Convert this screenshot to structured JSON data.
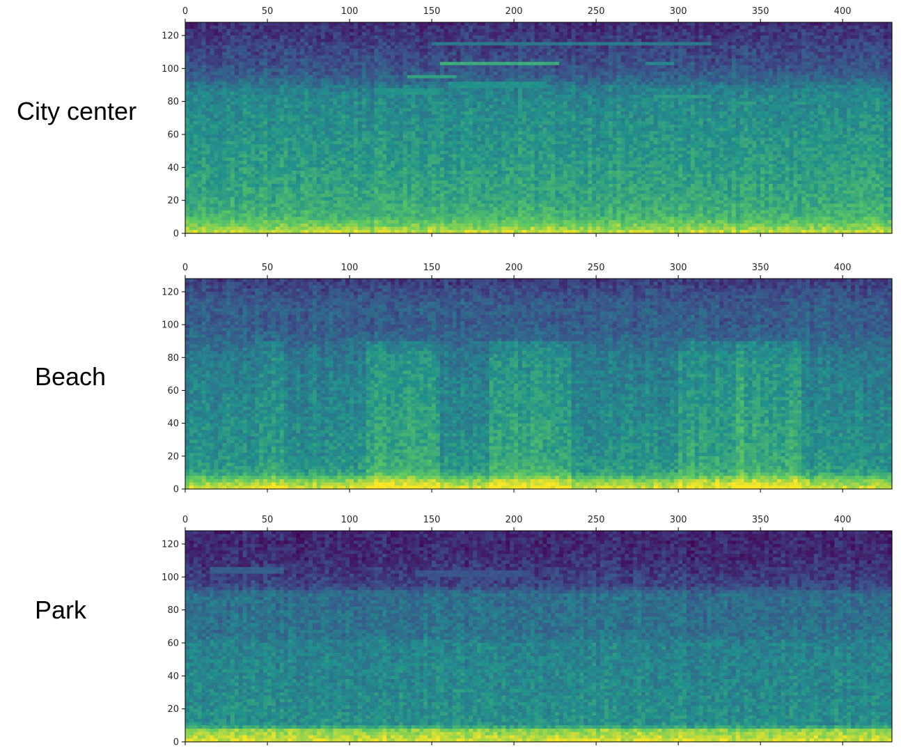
{
  "row_labels": [
    "City center",
    "Beach",
    "Park"
  ],
  "chart_data": [
    {
      "type": "heatmap",
      "row_label": "City center",
      "xlim": [
        0,
        430
      ],
      "ylim": [
        0,
        128
      ],
      "x_ticks": [
        0,
        50,
        100,
        150,
        200,
        250,
        300,
        350,
        400
      ],
      "y_ticks": [
        0,
        20,
        40,
        60,
        80,
        100,
        120
      ],
      "x_axis_position": "top",
      "colormap": [
        "#440154",
        "#3b528b",
        "#21918c",
        "#5ec962",
        "#fde725"
      ],
      "intensity_profile": [
        {
          "y": 0,
          "level": 0.93
        },
        {
          "y": 5,
          "level": 0.78
        },
        {
          "y": 10,
          "level": 0.66
        },
        {
          "y": 20,
          "level": 0.6
        },
        {
          "y": 40,
          "level": 0.55
        },
        {
          "y": 60,
          "level": 0.51
        },
        {
          "y": 80,
          "level": 0.47
        },
        {
          "y": 88,
          "level": 0.43
        },
        {
          "y": 92,
          "level": 0.34
        },
        {
          "y": 100,
          "level": 0.26
        },
        {
          "y": 110,
          "level": 0.22
        },
        {
          "y": 120,
          "level": 0.17
        },
        {
          "y": 128,
          "level": 0.13
        }
      ],
      "streaks": [
        {
          "x0": 135,
          "x1": 165,
          "y": 95,
          "level": 0.55
        },
        {
          "x0": 155,
          "x1": 228,
          "y": 103,
          "level": 0.62
        },
        {
          "x0": 150,
          "x1": 320,
          "y": 115,
          "level": 0.4
        },
        {
          "x0": 115,
          "x1": 155,
          "y": 86,
          "level": 0.52
        },
        {
          "x0": 160,
          "x1": 220,
          "y": 90,
          "level": 0.5
        },
        {
          "x0": 285,
          "x1": 320,
          "y": 83,
          "level": 0.55
        },
        {
          "x0": 330,
          "x1": 345,
          "y": 79,
          "level": 0.55
        },
        {
          "x0": 280,
          "x1": 298,
          "y": 103,
          "level": 0.45
        },
        {
          "x0": 55,
          "x1": 70,
          "y": 70,
          "level": 0.5
        }
      ],
      "vertical_bands": []
    },
    {
      "type": "heatmap",
      "row_label": "Beach",
      "xlim": [
        0,
        430
      ],
      "ylim": [
        0,
        128
      ],
      "x_ticks": [
        0,
        50,
        100,
        150,
        200,
        250,
        300,
        350,
        400
      ],
      "y_ticks": [
        0,
        20,
        40,
        60,
        80,
        100,
        120
      ],
      "x_axis_position": "top",
      "colormap": [
        "#440154",
        "#3b528b",
        "#21918c",
        "#5ec962",
        "#fde725"
      ],
      "intensity_profile": [
        {
          "y": 0,
          "level": 0.95
        },
        {
          "y": 5,
          "level": 0.8
        },
        {
          "y": 10,
          "level": 0.56
        },
        {
          "y": 20,
          "level": 0.5
        },
        {
          "y": 40,
          "level": 0.47
        },
        {
          "y": 60,
          "level": 0.44
        },
        {
          "y": 80,
          "level": 0.41
        },
        {
          "y": 90,
          "level": 0.34
        },
        {
          "y": 100,
          "level": 0.29
        },
        {
          "y": 110,
          "level": 0.3
        },
        {
          "y": 120,
          "level": 0.24
        },
        {
          "y": 128,
          "level": 0.17
        }
      ],
      "streaks": [],
      "vertical_bands": [
        {
          "x0": 110,
          "x1": 155,
          "level": 0.1
        },
        {
          "x0": 185,
          "x1": 235,
          "level": 0.1
        },
        {
          "x0": 300,
          "x1": 340,
          "level": 0.08
        },
        {
          "x0": 335,
          "x1": 375,
          "level": 0.1
        },
        {
          "x0": 45,
          "x1": 60,
          "level": 0.05
        }
      ]
    },
    {
      "type": "heatmap",
      "row_label": "Park",
      "xlim": [
        0,
        430
      ],
      "ylim": [
        0,
        128
      ],
      "x_ticks": [
        0,
        50,
        100,
        150,
        200,
        250,
        300,
        350,
        400
      ],
      "y_ticks": [
        0,
        20,
        40,
        60,
        80,
        100,
        120
      ],
      "x_axis_position": "top",
      "colormap": [
        "#440154",
        "#3b528b",
        "#21918c",
        "#5ec962",
        "#fde725"
      ],
      "intensity_profile": [
        {
          "y": 0,
          "level": 0.95
        },
        {
          "y": 7,
          "level": 0.82
        },
        {
          "y": 10,
          "level": 0.5
        },
        {
          "y": 30,
          "level": 0.47
        },
        {
          "y": 60,
          "level": 0.44
        },
        {
          "y": 65,
          "level": 0.38
        },
        {
          "y": 90,
          "level": 0.36
        },
        {
          "y": 94,
          "level": 0.22
        },
        {
          "y": 110,
          "level": 0.14
        },
        {
          "y": 128,
          "level": 0.11
        }
      ],
      "streaks": [
        {
          "x0": 15,
          "x1": 60,
          "y": 104,
          "level": 0.3
        },
        {
          "x0": 140,
          "x1": 210,
          "y": 102,
          "level": 0.26
        },
        {
          "x0": 260,
          "x1": 270,
          "y": 87,
          "level": 0.46
        }
      ],
      "vertical_bands": []
    }
  ]
}
